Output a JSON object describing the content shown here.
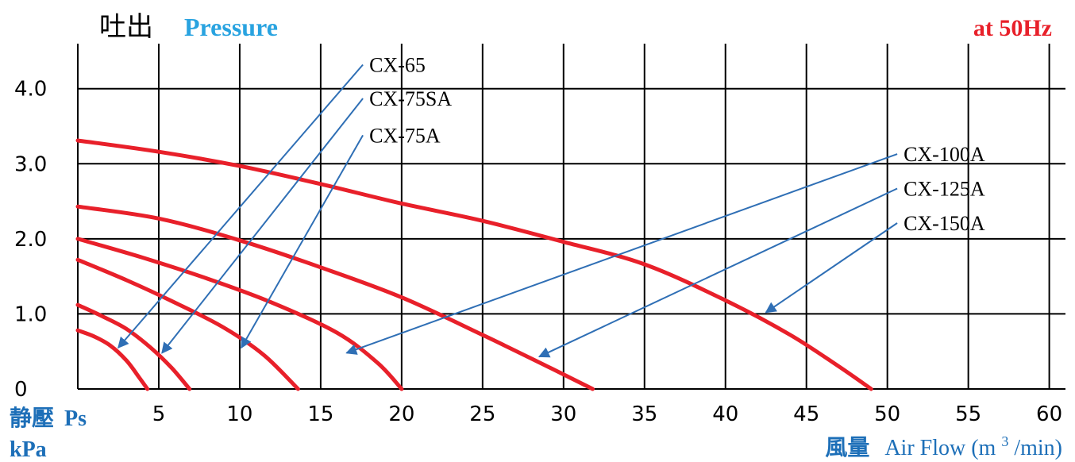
{
  "chart_data": {
    "type": "line",
    "title_jp": "吐出",
    "title_en": "Pressure",
    "frequency_label": "at 50Hz",
    "ylabel_jp": "静壓",
    "ylabel_sym": "Ps",
    "ylabel_unit": "kPa",
    "xlabel_jp": "風量",
    "xlabel_en": "Air Flow (m",
    "xlabel_sup": "3",
    "xlabel_tail": "/min)",
    "xlim": [
      0,
      61
    ],
    "ylim": [
      0,
      4.6
    ],
    "x_ticks": [
      "5",
      "10",
      "15",
      "20",
      "25",
      "30",
      "35",
      "40",
      "45",
      "50",
      "55",
      "60"
    ],
    "y_ticks": [
      "0",
      "1.0",
      "2.0",
      "3.0",
      "4.0"
    ],
    "x_grid": [
      0,
      5,
      10,
      15,
      20,
      25,
      30,
      35,
      40,
      45,
      50,
      55,
      60
    ],
    "y_grid": [
      0,
      1,
      2,
      3,
      4
    ],
    "colors": {
      "curve": "#e8202a",
      "leader": "#2f6fb5",
      "title_en": "#29a3e0",
      "freq": "#e8202a",
      "label_blue": "#1d6fb8",
      "grid": "#000000"
    },
    "series": [
      {
        "name": "CX-65",
        "points": [
          [
            0,
            0.78
          ],
          [
            1,
            0.7
          ],
          [
            2,
            0.58
          ],
          [
            3,
            0.38
          ],
          [
            3.8,
            0.15
          ],
          [
            4.3,
            0.0
          ]
        ]
      },
      {
        "name": "CX-75SA",
        "points": [
          [
            0,
            1.12
          ],
          [
            1.5,
            0.97
          ],
          [
            3,
            0.8
          ],
          [
            4.5,
            0.55
          ],
          [
            5.8,
            0.28
          ],
          [
            6.9,
            0.0
          ]
        ]
      },
      {
        "name": "CX-75A",
        "points": [
          [
            0,
            1.72
          ],
          [
            3,
            1.45
          ],
          [
            6,
            1.15
          ],
          [
            9,
            0.82
          ],
          [
            11.5,
            0.45
          ],
          [
            13.6,
            0.0
          ]
        ]
      },
      {
        "name": "CX-100A",
        "points": [
          [
            0,
            2.0
          ],
          [
            4,
            1.75
          ],
          [
            8,
            1.47
          ],
          [
            12,
            1.15
          ],
          [
            16,
            0.75
          ],
          [
            18.5,
            0.35
          ],
          [
            20.0,
            0.0
          ]
        ]
      },
      {
        "name": "CX-125A",
        "points": [
          [
            0,
            2.43
          ],
          [
            5,
            2.27
          ],
          [
            10,
            1.98
          ],
          [
            15,
            1.62
          ],
          [
            20,
            1.22
          ],
          [
            25,
            0.72
          ],
          [
            29,
            0.3
          ],
          [
            31.8,
            0.0
          ]
        ]
      },
      {
        "name": "CX-150A",
        "points": [
          [
            0,
            3.31
          ],
          [
            5,
            3.16
          ],
          [
            10,
            2.97
          ],
          [
            15,
            2.73
          ],
          [
            20,
            2.47
          ],
          [
            25,
            2.24
          ],
          [
            30,
            1.96
          ],
          [
            35,
            1.66
          ],
          [
            40,
            1.18
          ],
          [
            44,
            0.72
          ],
          [
            47,
            0.3
          ],
          [
            49,
            0.0
          ]
        ]
      }
    ],
    "labels": [
      {
        "text": "CX-65",
        "x": 18.0,
        "y": 4.32,
        "arrow_to": [
          2.5,
          0.55
        ]
      },
      {
        "text": "CX-75SA",
        "x": 18.0,
        "y": 3.87,
        "arrow_to": [
          5.2,
          0.48
        ]
      },
      {
        "text": "CX-75A",
        "x": 18.0,
        "y": 3.38,
        "arrow_to": [
          10.1,
          0.55
        ]
      },
      {
        "text": "CX-100A",
        "x": 51.0,
        "y": 3.13,
        "arrow_to": [
          16.6,
          0.48
        ]
      },
      {
        "text": "CX-125A",
        "x": 51.0,
        "y": 2.67,
        "arrow_to": [
          28.5,
          0.43
        ]
      },
      {
        "text": "CX-150A",
        "x": 51.0,
        "y": 2.21,
        "arrow_to": [
          42.5,
          1.02
        ]
      }
    ]
  }
}
